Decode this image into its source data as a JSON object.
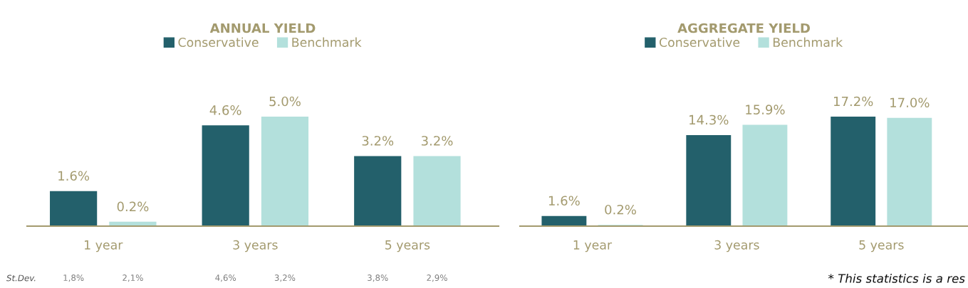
{
  "chart_data": [
    {
      "type": "bar",
      "title": "ANNUAL YIELD",
      "categories": [
        "1 year",
        "3 years",
        "5 years"
      ],
      "series": [
        {
          "name": "Conservative",
          "color": "#23606b",
          "values": [
            1.6,
            4.6,
            3.2
          ],
          "value_labels": [
            "1.6%",
            "4.6%",
            "3.2%"
          ]
        },
        {
          "name": "Benchmark",
          "color": "#b3e0dc",
          "values": [
            0.2,
            5.0,
            3.2
          ],
          "value_labels": [
            "0.2%",
            "5.0%",
            "3.2%"
          ]
        }
      ],
      "legend": "top",
      "grid": false,
      "annotations": [
        "St.Dev.",
        "1,8%",
        "2,1%",
        "4,6%",
        "3,2%",
        "3,8%",
        "2,9%"
      ]
    },
    {
      "type": "bar",
      "title": "AGGREGATE YIELD",
      "categories": [
        "1 year",
        "3 years",
        "5 years"
      ],
      "series": [
        {
          "name": "Conservative",
          "color": "#23606b",
          "values": [
            1.6,
            14.3,
            17.2
          ],
          "value_labels": [
            "1.6%",
            "14.3%",
            "17.2%"
          ]
        },
        {
          "name": "Benchmark",
          "color": "#b3e0dc",
          "values": [
            0.2,
            15.9,
            17.0
          ],
          "value_labels": [
            "0.2%",
            "15.9%",
            "17.0%"
          ]
        }
      ],
      "legend": "top",
      "grid": false,
      "annotations": [
        "* This statistics is a res"
      ]
    }
  ]
}
